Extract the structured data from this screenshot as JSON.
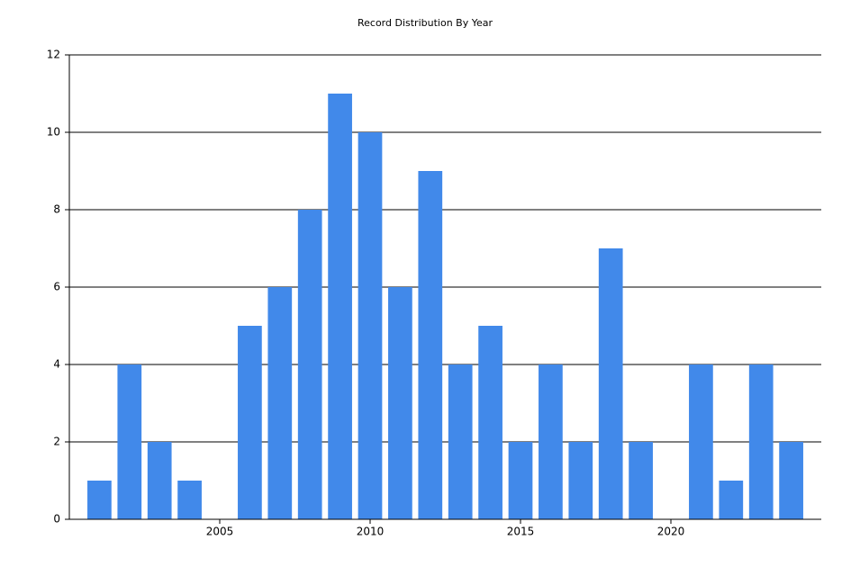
{
  "chart_data": {
    "type": "bar",
    "title": "Record Distribution By Year",
    "x": [
      2001,
      2002,
      2003,
      2004,
      2006,
      2007,
      2008,
      2009,
      2010,
      2011,
      2012,
      2013,
      2014,
      2015,
      2016,
      2017,
      2018,
      2019,
      2021,
      2022,
      2023,
      2024
    ],
    "values": [
      1,
      4,
      2,
      1,
      5,
      6,
      8,
      11,
      10,
      6,
      9,
      4,
      5,
      2,
      4,
      2,
      7,
      2,
      4,
      1,
      4,
      2
    ],
    "color": "#4189ea",
    "xlim": [
      2000,
      2025
    ],
    "xticks": [
      2005,
      2010,
      2015,
      2020
    ],
    "ylim": [
      0,
      12
    ],
    "yticks": [
      0,
      2,
      4,
      6,
      8,
      10,
      12
    ],
    "grid": true
  }
}
